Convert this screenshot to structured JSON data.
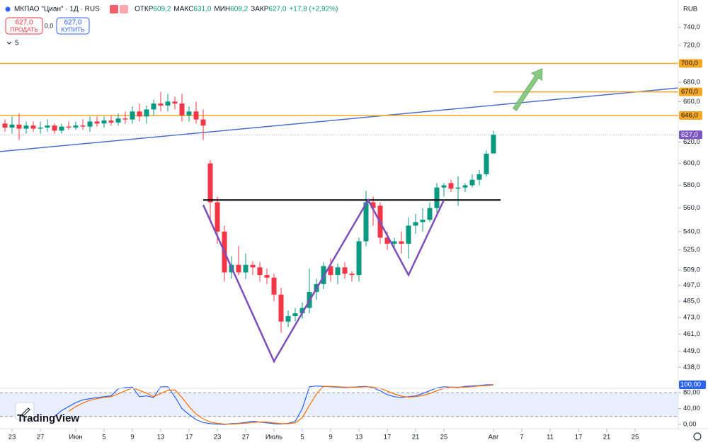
{
  "header": {
    "symbol": "МКПАО \"Циан\" · 1Д · RUS",
    "ohlc": [
      {
        "label": "ОТКР",
        "value": "609,2"
      },
      {
        "label": "МАКС",
        "value": "631,0"
      },
      {
        "label": "МИН",
        "value": "609,2"
      },
      {
        "label": "ЗАКР",
        "value": "627,0"
      }
    ],
    "change": "+17,8 (+2,92%)",
    "sell": {
      "price": "627,0",
      "label": "ПРОДАТЬ"
    },
    "spread": "0,0",
    "buy": {
      "price": "627,0",
      "label": "КУПИТЬ"
    },
    "indicators": "5",
    "currency": "RUB",
    "logo": "TradingView"
  },
  "chart_data": {
    "type": "candlestick",
    "log_scale": true,
    "up_color": "#089981",
    "down_color": "#f23645",
    "open": [
      638,
      634,
      637,
      633,
      636,
      633,
      634,
      636,
      631,
      635,
      634,
      636,
      635,
      640,
      638,
      641,
      639,
      643,
      642,
      650,
      645,
      652,
      658,
      656,
      660,
      658,
      646,
      650,
      642,
      600,
      565,
      540,
      507,
      513,
      507,
      513,
      511,
      505,
      503,
      490,
      470,
      474,
      476,
      480,
      492,
      498,
      512,
      505,
      511,
      506,
      505,
      532,
      565,
      562,
      535,
      530,
      532,
      530,
      545,
      548,
      550,
      560,
      578,
      582,
      577,
      578,
      580,
      585,
      590,
      609.2
    ],
    "high": [
      642,
      645,
      648,
      640,
      640,
      640,
      642,
      638,
      638,
      640,
      640,
      642,
      645,
      645,
      645,
      646,
      648,
      650,
      655,
      658,
      656,
      662,
      670,
      668,
      665,
      668,
      655,
      660,
      652,
      603,
      570,
      545,
      520,
      528,
      522,
      516,
      515,
      510,
      506,
      495,
      478,
      480,
      484,
      510,
      502,
      515,
      518,
      514,
      515,
      508,
      535,
      575,
      570,
      565,
      540,
      535,
      540,
      552,
      555,
      560,
      565,
      582,
      582,
      585,
      588,
      582,
      590,
      594,
      612,
      631
    ],
    "low": [
      630,
      628,
      622,
      628,
      630,
      628,
      630,
      628,
      628,
      632,
      632,
      632,
      630,
      635,
      634,
      636,
      636,
      638,
      638,
      640,
      638,
      646,
      650,
      650,
      652,
      640,
      640,
      638,
      622,
      548,
      530,
      500,
      502,
      505,
      502,
      505,
      500,
      498,
      485,
      462,
      466,
      470,
      472,
      476,
      486,
      494,
      500,
      498,
      502,
      500,
      500,
      528,
      545,
      530,
      525,
      525,
      522,
      518,
      538,
      540,
      548,
      556,
      570,
      574,
      562,
      574,
      578,
      580,
      588,
      609.2
    ],
    "close": [
      634,
      637,
      633,
      636,
      633,
      634,
      636,
      631,
      635,
      634,
      636,
      635,
      640,
      638,
      641,
      639,
      643,
      642,
      650,
      645,
      652,
      658,
      656,
      660,
      658,
      646,
      650,
      642,
      636,
      565,
      540,
      507,
      513,
      507,
      513,
      511,
      505,
      503,
      490,
      470,
      474,
      476,
      480,
      492,
      498,
      512,
      505,
      511,
      506,
      505,
      532,
      565,
      560,
      535,
      530,
      532,
      530,
      545,
      548,
      550,
      560,
      578,
      580,
      577,
      578,
      580,
      585,
      590,
      609,
      627
    ],
    "xlim": [
      -0.7,
      95.1
    ],
    "ylim": [
      424,
      772
    ],
    "xticks": [
      {
        "value": 1,
        "label": "23"
      },
      {
        "value": 5,
        "label": "27"
      },
      {
        "value": 10,
        "label": "Июн"
      },
      {
        "value": 14,
        "label": "5"
      },
      {
        "value": 18,
        "label": "9"
      },
      {
        "value": 22,
        "label": "13"
      },
      {
        "value": 26,
        "label": "17"
      },
      {
        "value": 30,
        "label": "23"
      },
      {
        "value": 34,
        "label": "27"
      },
      {
        "value": 38,
        "label": "Июль"
      },
      {
        "value": 42,
        "label": "5"
      },
      {
        "value": 46,
        "label": "9"
      },
      {
        "value": 50,
        "label": "13"
      },
      {
        "value": 54,
        "label": "17"
      },
      {
        "value": 58,
        "label": "21"
      },
      {
        "value": 62,
        "label": "25"
      },
      {
        "value": 69,
        "label": "Авг"
      },
      {
        "value": 73,
        "label": "7"
      },
      {
        "value": 77,
        "label": "11"
      },
      {
        "value": 81,
        "label": "17"
      },
      {
        "value": 85,
        "label": "21"
      },
      {
        "value": 89,
        "label": "25"
      }
    ],
    "yticks": [
      {
        "value": 740,
        "label": "740,0"
      },
      {
        "value": 720,
        "label": "720,0"
      },
      {
        "value": 680,
        "label": "680,0"
      },
      {
        "value": 660,
        "label": "660,0"
      },
      {
        "value": 620,
        "label": "620,0"
      },
      {
        "value": 600,
        "label": "600,0"
      },
      {
        "value": 580,
        "label": "580,0"
      },
      {
        "value": 560,
        "label": "560,0"
      },
      {
        "value": 540,
        "label": "540,0"
      },
      {
        "value": 525,
        "label": "525,0"
      },
      {
        "value": 509,
        "label": "509,0"
      },
      {
        "value": 497,
        "label": "497,0"
      },
      {
        "value": 485,
        "label": "485,0"
      },
      {
        "value": 473,
        "label": "473,0"
      },
      {
        "value": 461,
        "label": "461,0"
      },
      {
        "value": 449,
        "label": "449,0"
      },
      {
        "value": 438,
        "label": "438,0"
      }
    ],
    "levels": [
      {
        "value": 700,
        "label": "700,0",
        "color": "#f5a623",
        "start": -0.7
      },
      {
        "value": 670,
        "label": "670,0",
        "color": "#f5a623",
        "start": 69
      },
      {
        "value": 646,
        "label": "646,0",
        "color": "#f5a623",
        "start": -0.7
      }
    ],
    "last_price": {
      "value": 627,
      "label": "627,0",
      "color": "#7e57c2"
    },
    "trendline": {
      "x": [
        -0.7,
        95.1
      ],
      "y": [
        611,
        674
      ],
      "color": "#4a6fd0"
    },
    "neckline": {
      "x": [
        28,
        70
      ],
      "y": [
        567,
        567
      ],
      "color": "#000000"
    },
    "pattern": {
      "x": [
        28,
        38,
        51.3,
        57,
        62
      ],
      "y": [
        562.7,
        442,
        567,
        505,
        567
      ],
      "color": "#7e4fb8"
    },
    "arrow": {
      "x": [
        72,
        75.9
      ],
      "y": [
        652,
        694.5
      ],
      "color": "#7cc576"
    },
    "stochastic": {
      "ylim": [
        0,
        100
      ],
      "yticks": [
        {
          "value": 80,
          "label": "80,00"
        },
        {
          "value": 40,
          "label": "40,00"
        },
        {
          "value": 0,
          "label": "0,00"
        }
      ],
      "band": [
        20,
        80
      ],
      "current": {
        "value": 100,
        "label": "100,00"
      },
      "series": [
        {
          "name": "%K",
          "color": "#2962ff",
          "values": [
            null,
            null,
            null,
            null,
            null,
            null,
            null,
            20,
            35,
            45,
            55,
            62,
            65,
            68,
            70,
            72,
            90,
            93,
            94,
            70,
            72,
            68,
            95,
            95,
            70,
            40,
            25,
            12,
            5,
            2,
            1,
            0,
            2,
            3,
            5,
            8,
            6,
            4,
            2,
            1,
            3,
            8,
            40,
            95,
            97,
            96,
            95,
            94,
            93,
            94,
            95,
            96,
            92,
            85,
            75,
            70,
            68,
            70,
            72,
            78,
            85,
            92,
            95,
            94,
            93,
            96,
            97,
            98,
            100,
            100
          ]
        },
        {
          "name": "%D",
          "color": "#ff6d00",
          "values": [
            null,
            null,
            null,
            null,
            null,
            null,
            null,
            null,
            null,
            33,
            45,
            54,
            61,
            65,
            68,
            70,
            77,
            85,
            92,
            86,
            79,
            70,
            78,
            86,
            87,
            68,
            45,
            26,
            14,
            6,
            3,
            1,
            1,
            2,
            3,
            5,
            6,
            6,
            4,
            2,
            2,
            4,
            17,
            48,
            77,
            96,
            96,
            95,
            94,
            94,
            94,
            95,
            94,
            91,
            84,
            77,
            71,
            69,
            70,
            73,
            78,
            85,
            91,
            94,
            94,
            94,
            95,
            97,
            98,
            99
          ]
        }
      ]
    }
  }
}
